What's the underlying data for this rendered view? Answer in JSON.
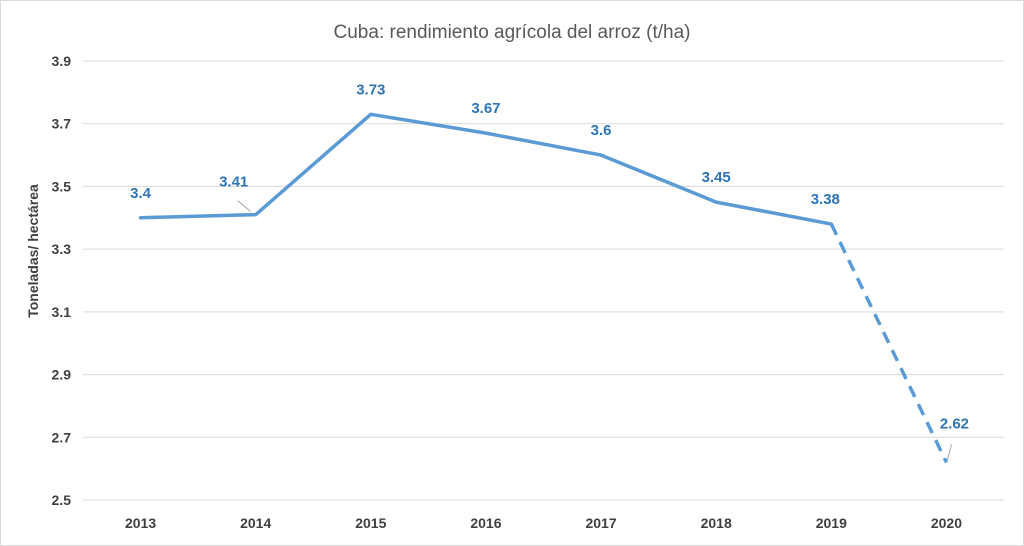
{
  "chart_data": {
    "type": "line",
    "title": "Cuba: rendimiento agrícola del arroz (t/ha)",
    "xlabel": "",
    "ylabel": "Toneladas/ hectárea",
    "categories": [
      "2013",
      "2014",
      "2015",
      "2016",
      "2017",
      "2018",
      "2019",
      "2020"
    ],
    "values": [
      3.4,
      3.41,
      3.73,
      3.67,
      3.6,
      3.45,
      3.38,
      2.62
    ],
    "data_labels": [
      "3.4",
      "3.41",
      "3.73",
      "3.67",
      "3.6",
      "3.45",
      "3.38",
      "2.62"
    ],
    "ylim": [
      2.5,
      3.9
    ],
    "yticks": [
      "3.9",
      "3.7",
      "3.5",
      "3.3",
      "3.1",
      "2.9",
      "2.7",
      "2.5"
    ],
    "ytick_values": [
      3.9,
      3.7,
      3.5,
      3.3,
      3.1,
      2.9,
      2.7,
      2.5
    ],
    "dashed_from_index": 6,
    "grid": true,
    "legend": "none",
    "colors": {
      "line": "#5b9bd5",
      "label": "#2e75b6",
      "grid": "#d9d9d9",
      "text": "#404040",
      "title": "#595959"
    }
  }
}
